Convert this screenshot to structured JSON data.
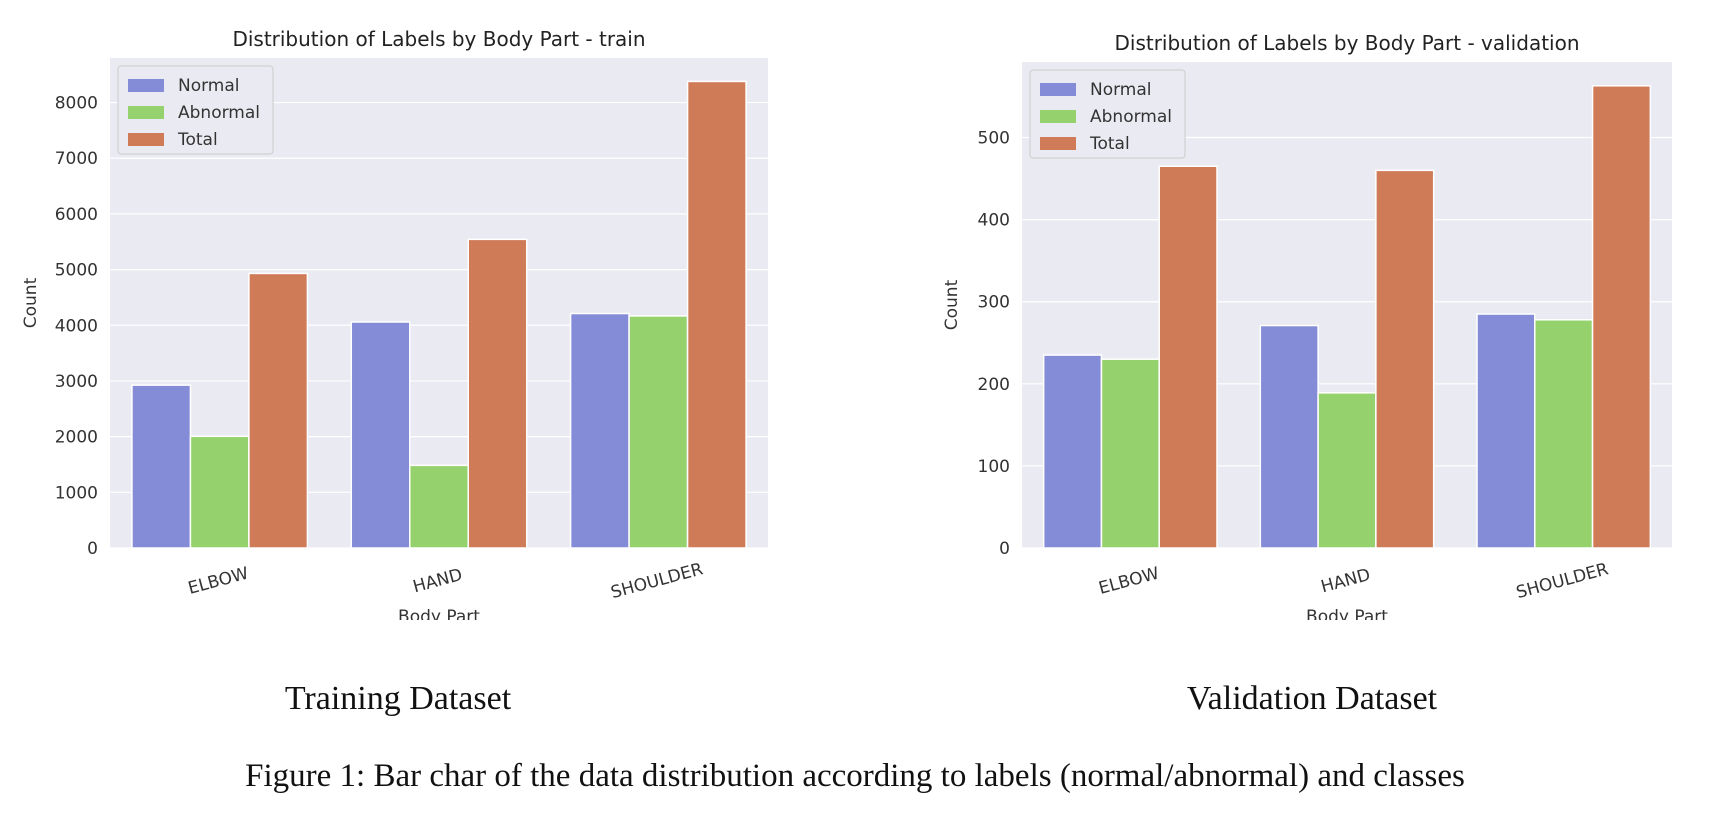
{
  "colors": {
    "Normal": "#848cd8",
    "Abnormal": "#95d26e",
    "Total": "#cf7b58",
    "plot_background": "#eaeaf2",
    "grid": "#ffffff"
  },
  "chart_data": [
    {
      "type": "bar",
      "title": "Distribution of Labels by Body Part - train",
      "xlabel": "Body Part",
      "ylabel": "Count",
      "categories": [
        "ELBOW",
        "HAND",
        "SHOULDER"
      ],
      "series": [
        {
          "name": "Normal",
          "values": [
            2925,
            4059,
            4211
          ]
        },
        {
          "name": "Abnormal",
          "values": [
            2006,
            1484,
            4168
          ]
        },
        {
          "name": "Total",
          "values": [
            4931,
            5543,
            8379
          ]
        }
      ],
      "yticks": [
        0,
        1000,
        2000,
        3000,
        4000,
        5000,
        6000,
        7000,
        8000
      ],
      "ylim": [
        0,
        8800
      ],
      "grid": true,
      "legend": "top-left",
      "tick_label_rotation": -15
    },
    {
      "type": "bar",
      "title": "Distribution of Labels by Body Part - validation",
      "xlabel": "Body Part",
      "ylabel": "Count",
      "categories": [
        "ELBOW",
        "HAND",
        "SHOULDER"
      ],
      "series": [
        {
          "name": "Normal",
          "values": [
            235,
            271,
            285
          ]
        },
        {
          "name": "Abnormal",
          "values": [
            230,
            189,
            278
          ]
        },
        {
          "name": "Total",
          "values": [
            465,
            460,
            563
          ]
        }
      ],
      "yticks": [
        0,
        100,
        200,
        300,
        400,
        500
      ],
      "ylim": [
        0,
        592
      ],
      "grid": true,
      "legend": "top-left",
      "tick_label_rotation": -15
    }
  ],
  "subcaptions": {
    "left": "Training Dataset",
    "right": "Validation Dataset"
  },
  "caption": "Figure 1: Bar char of the data distribution according to labels (normal/abnormal) and classes"
}
